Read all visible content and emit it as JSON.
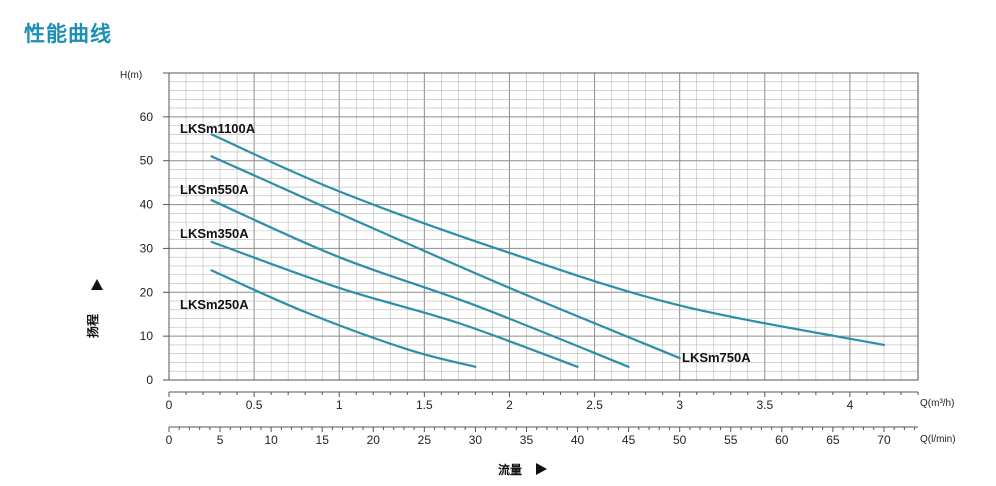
{
  "page_title": "性能曲线",
  "colors": {
    "title": "#1c8fb6",
    "curve": "#2b8fa8",
    "grid": "#b8b8b8",
    "frame": "#555555"
  },
  "chart_data": {
    "type": "line",
    "title": "性能曲线",
    "xlabel": "流量",
    "ylabel": "扬程",
    "y_unit_label": "H(m)",
    "x_unit_label": "Q(m³/h)",
    "x2_unit_label": "Q(l/min)",
    "xlim": [
      0,
      4.4
    ],
    "ylim": [
      0,
      70
    ],
    "x_ticks": [
      "0",
      "0.5",
      "1",
      "1.5",
      "2",
      "2.5",
      "3",
      "3.5",
      "4"
    ],
    "x_tick_values": [
      0,
      0.5,
      1,
      1.5,
      2,
      2.5,
      3,
      3.5,
      4
    ],
    "x2_ticks": [
      "0",
      "5",
      "10",
      "15",
      "20",
      "25",
      "30",
      "35",
      "40",
      "45",
      "50",
      "55",
      "60",
      "65",
      "70"
    ],
    "x2_tick_values": [
      0,
      5,
      10,
      15,
      20,
      25,
      30,
      35,
      40,
      45,
      50,
      55,
      60,
      65,
      70
    ],
    "y_ticks": [
      "0",
      "10",
      "20",
      "30",
      "40",
      "50",
      "60"
    ],
    "y_tick_values": [
      0,
      10,
      20,
      30,
      40,
      50,
      60
    ],
    "grid": true,
    "series": [
      {
        "name": "LKSm1100A",
        "x": [
          0.25,
          1.0,
          2.0,
          3.0,
          4.2
        ],
        "y": [
          56,
          43,
          29,
          17,
          8
        ]
      },
      {
        "name": "LKSm750A",
        "x": [
          0.25,
          1.0,
          2.0,
          3.0
        ],
        "y": [
          51,
          38,
          21,
          5
        ]
      },
      {
        "name": "LKSm550A",
        "x": [
          0.25,
          1.0,
          1.8,
          2.7
        ],
        "y": [
          41,
          28,
          17,
          3
        ]
      },
      {
        "name": "LKSm350A",
        "x": [
          0.25,
          1.0,
          1.7,
          2.4
        ],
        "y": [
          31.5,
          21,
          13,
          3
        ]
      },
      {
        "name": "LKSm250A",
        "x": [
          0.25,
          0.8,
          1.4,
          1.8
        ],
        "y": [
          25,
          15.5,
          7,
          3
        ]
      }
    ]
  }
}
